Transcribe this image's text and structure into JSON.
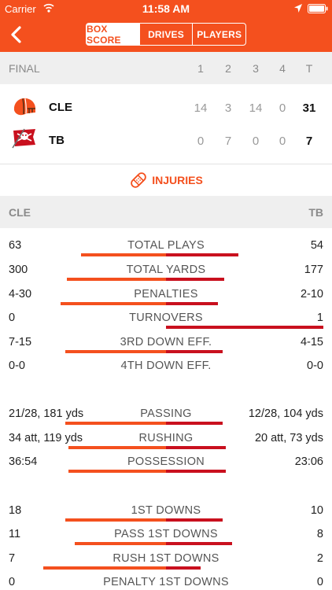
{
  "status": {
    "carrier": "Carrier",
    "time": "11:58 AM"
  },
  "nav": {
    "tabs": [
      "BOX SCORE",
      "DRIVES",
      "PLAYERS"
    ]
  },
  "scoreboard": {
    "status": "FINAL",
    "periods": [
      "1",
      "2",
      "3",
      "4",
      "T"
    ],
    "teams": [
      {
        "abbr": "CLE",
        "scores": [
          "14",
          "3",
          "14",
          "0",
          "31"
        ],
        "color": "#f4501e"
      },
      {
        "abbr": "TB",
        "scores": [
          "0",
          "7",
          "0",
          "0",
          "7"
        ],
        "color": "#c9101e"
      }
    ]
  },
  "injuries": {
    "label": "INJURIES"
  },
  "team_header": {
    "left": "CLE",
    "right": "TB"
  },
  "colors": {
    "accent": "#f4501e",
    "left_bar": "#f4501e",
    "right_bar": "#c9101e"
  },
  "stats": [
    {
      "label": "TOTAL PLAYS",
      "left": "63",
      "right": "54",
      "left_share": 0.54,
      "right_share": 0.46
    },
    {
      "label": "TOTAL YARDS",
      "left": "300",
      "right": "177",
      "left_share": 0.63,
      "right_share": 0.37
    },
    {
      "label": "PENALTIES",
      "left": "4-30",
      "right": "2-10",
      "left_share": 0.67,
      "right_share": 0.33
    },
    {
      "label": "TURNOVERS",
      "left": "0",
      "right": "1",
      "left_share": 0.0,
      "right_share": 1.0
    },
    {
      "label": "3RD DOWN EFF.",
      "left": "7-15",
      "right": "4-15",
      "left_share": 0.64,
      "right_share": 0.36
    },
    {
      "label": "4TH DOWN EFF.",
      "left": "0-0",
      "right": "0-0",
      "left_share": 0.0,
      "right_share": 0.0
    },
    {
      "label": "PASSING",
      "left": "21/28, 181 yds",
      "right": "12/28, 104 yds",
      "left_share": 0.64,
      "right_share": 0.36
    },
    {
      "label": "RUSHING",
      "left": "34 att, 119 yds",
      "right": "20 att, 73 yds",
      "left_share": 0.62,
      "right_share": 0.38
    },
    {
      "label": "POSSESSION",
      "left": "36:54",
      "right": "23:06",
      "left_share": 0.62,
      "right_share": 0.38
    },
    {
      "label": "1ST DOWNS",
      "left": "18",
      "right": "10",
      "left_share": 0.64,
      "right_share": 0.36
    },
    {
      "label": "PASS 1ST DOWNS",
      "left": "11",
      "right": "8",
      "left_share": 0.58,
      "right_share": 0.42
    },
    {
      "label": "RUSH 1ST DOWNS",
      "left": "7",
      "right": "2",
      "left_share": 0.78,
      "right_share": 0.22
    },
    {
      "label": "PENALTY 1ST DOWNS",
      "left": "0",
      "right": "0",
      "left_share": 0.0,
      "right_share": 0.0
    }
  ]
}
